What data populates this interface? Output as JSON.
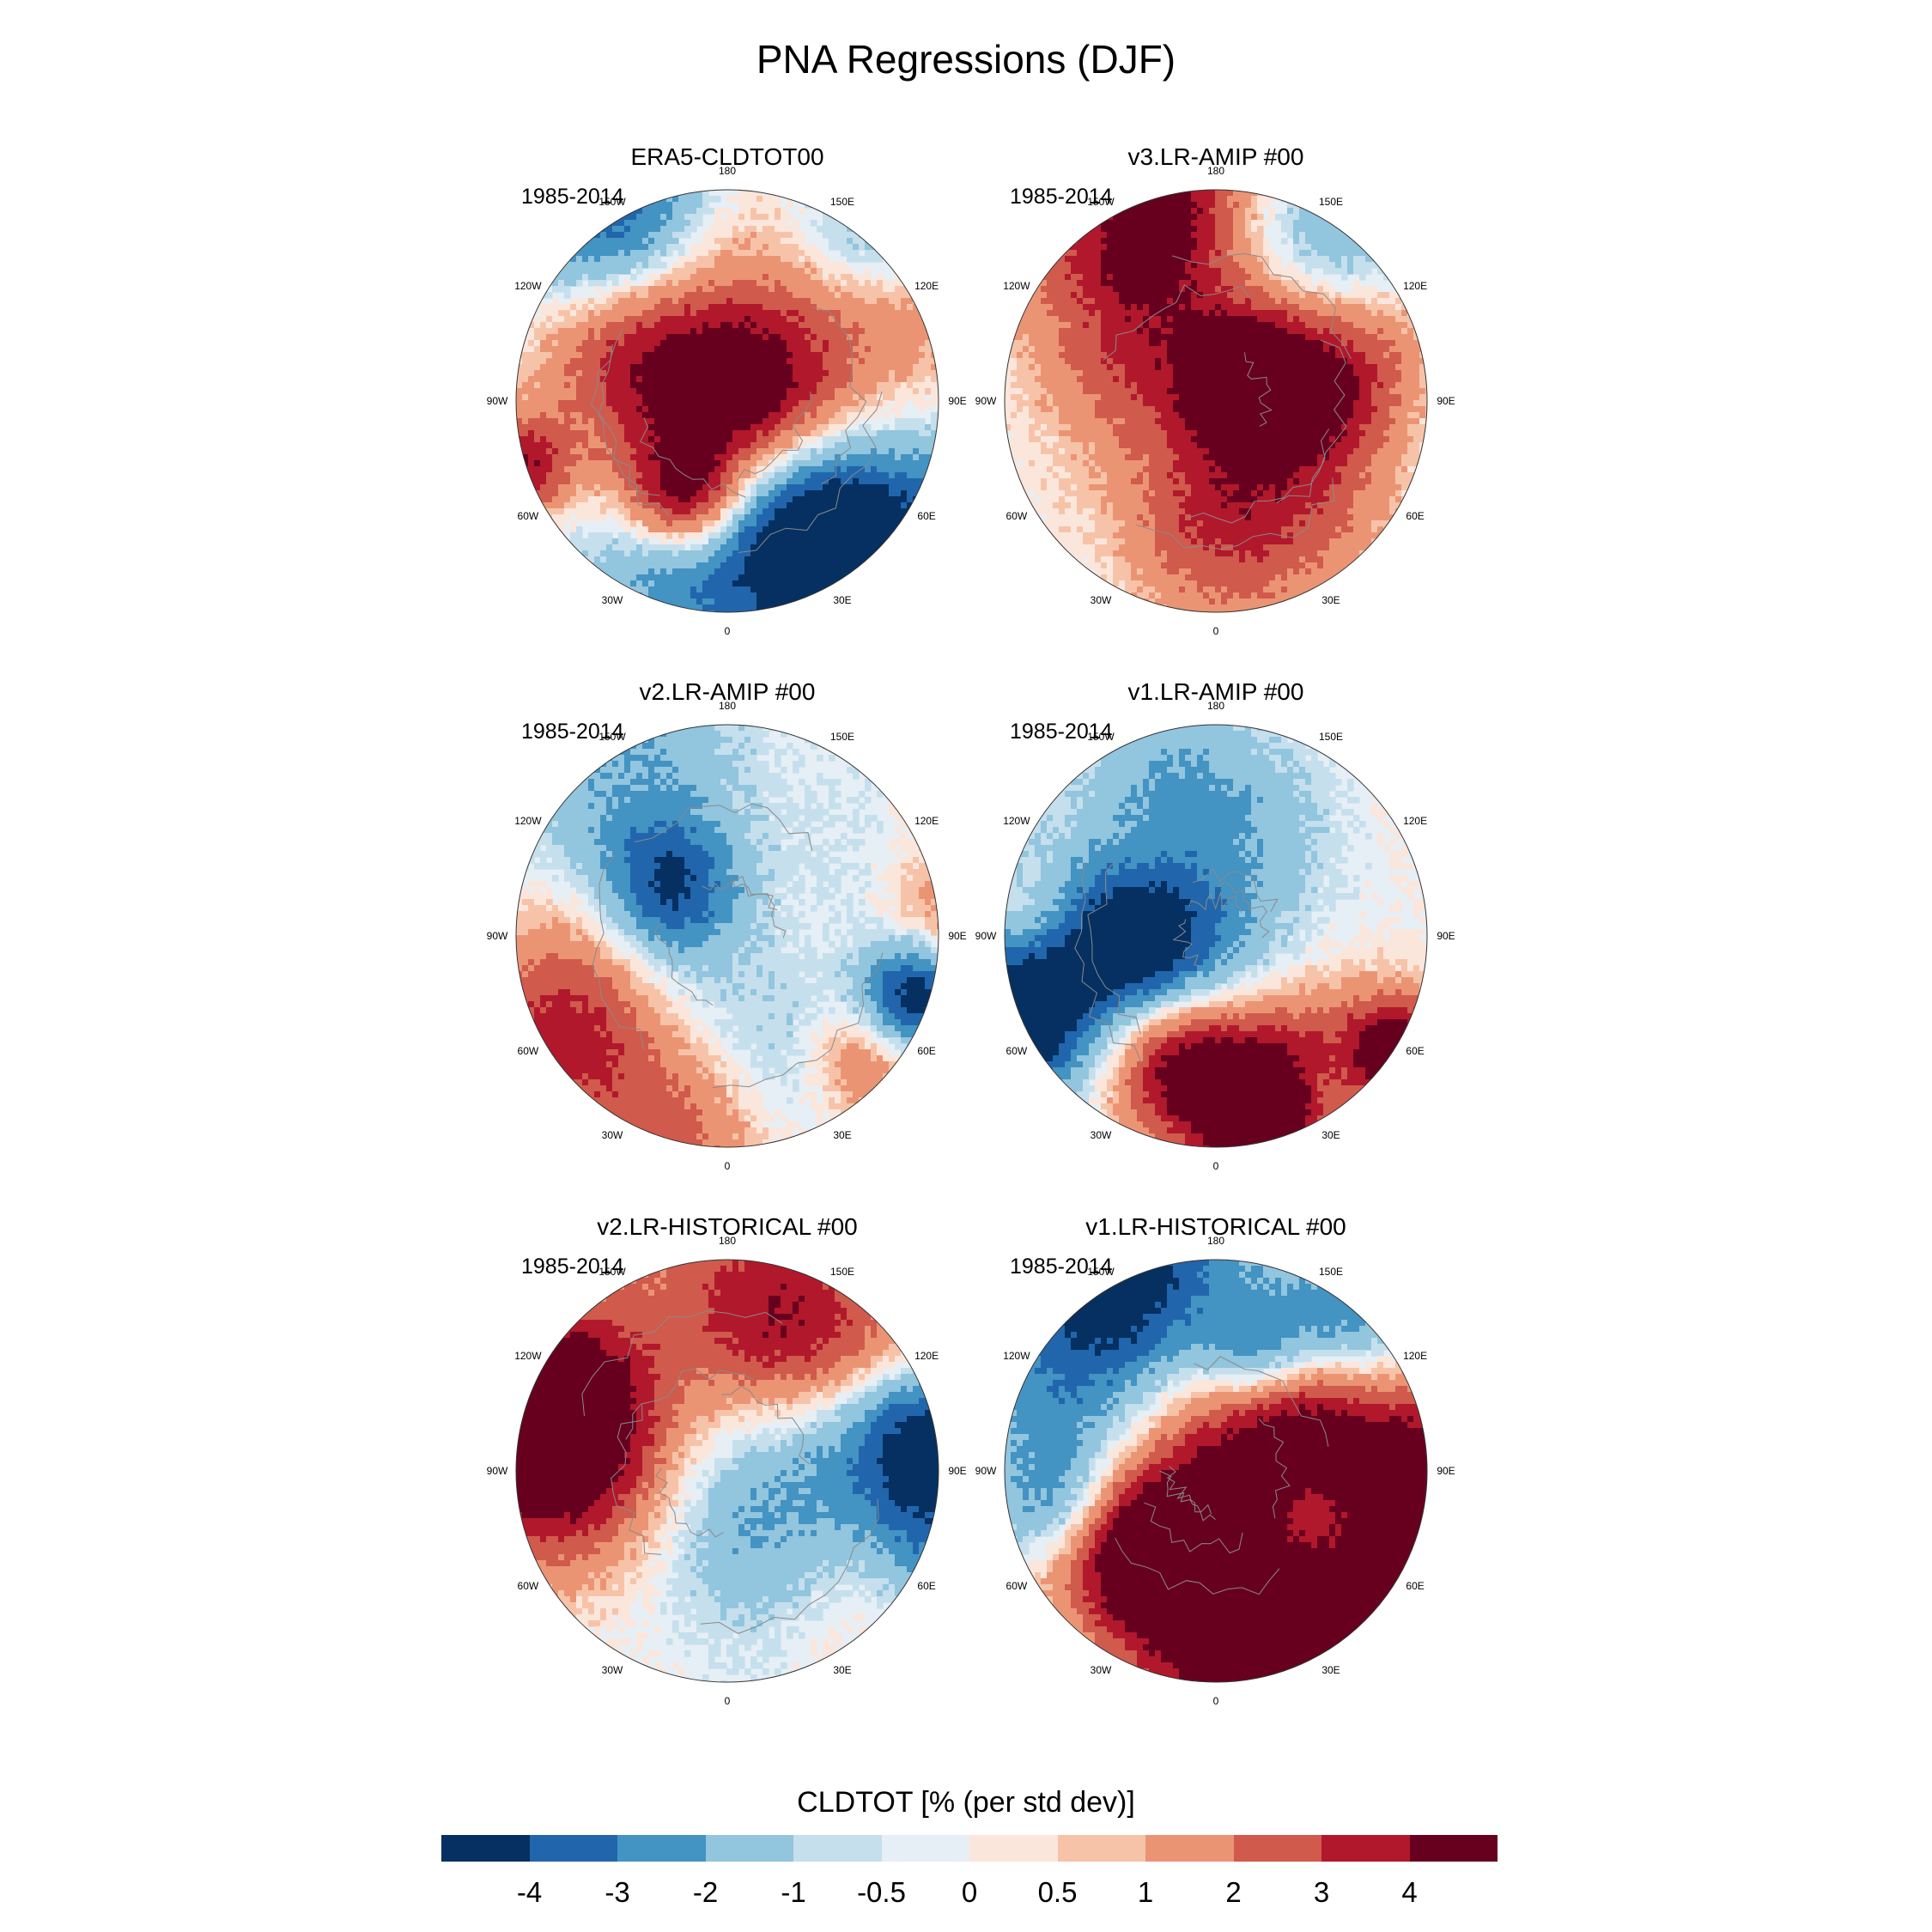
{
  "title": "PNA Regressions (DJF)",
  "panels": [
    {
      "title": "ERA5-CLDTOT00",
      "period": "1985-2014"
    },
    {
      "title": "v3.LR-AMIP  #00",
      "period": "1985-2014"
    },
    {
      "title": "v2.LR-AMIP  #00",
      "period": "1985-2014"
    },
    {
      "title": "v1.LR-AMIP  #00",
      "period": "1985-2014"
    },
    {
      "title": "v2.LR-HISTORICAL  #00",
      "period": "1985-2014"
    },
    {
      "title": "v1.LR-HISTORICAL  #00",
      "period": "1985-2014"
    }
  ],
  "lon_labels": [
    "180",
    "150E",
    "120E",
    "90E",
    "60E",
    "30E",
    "0",
    "30W",
    "60W",
    "90W",
    "120W",
    "150W"
  ],
  "colorbar": {
    "title": "CLDTOT [% (per std dev)]",
    "colors": [
      "#053061",
      "#2166ac",
      "#4393c3",
      "#92c5de",
      "#c5dfed",
      "#e6eff5",
      "#fbe6dc",
      "#f7c3a8",
      "#eb9474",
      "#d05a4c",
      "#b2182b",
      "#67001f"
    ],
    "ticks": [
      "-4",
      "-3",
      "-2",
      "-1",
      "-0.5",
      "0",
      "0.5",
      "1",
      "2",
      "3",
      "4"
    ]
  }
}
